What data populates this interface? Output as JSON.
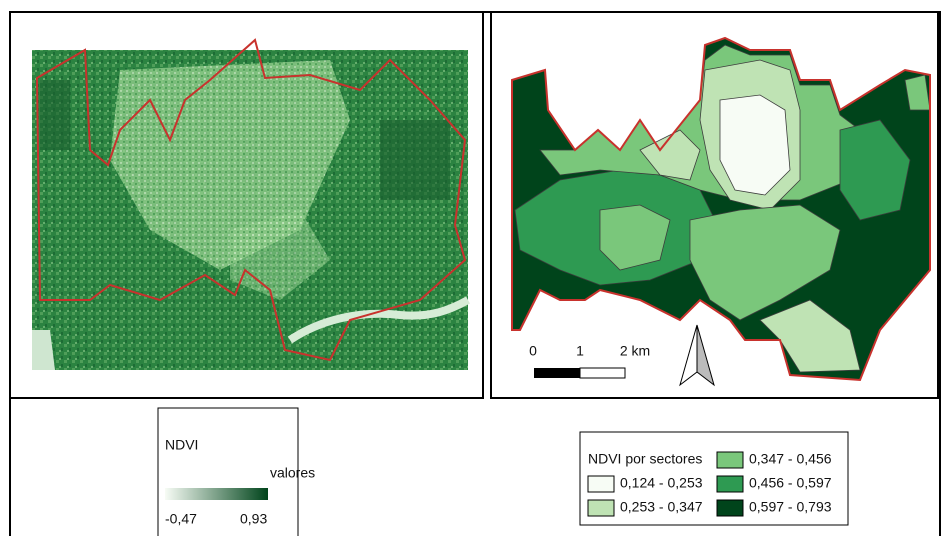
{
  "left_panel": {
    "legend": {
      "title": "NDVI",
      "subtitle": "valores",
      "min_label": "-0,47",
      "max_label": "0,93",
      "ramp_colors": [
        "#f7fcf5",
        "#00441b"
      ]
    }
  },
  "right_panel": {
    "scale_bar": {
      "labels": [
        "0",
        "1",
        "2 km"
      ]
    },
    "legend": {
      "title": "NDVI por sectores",
      "classes": [
        {
          "label": "0,124 - 0,253",
          "color": "#f7fcf5"
        },
        {
          "label": "0,253 - 0,347",
          "color": "#bfe3b4"
        },
        {
          "label": "0,347 - 0,456",
          "color": "#7ac77b"
        },
        {
          "label": "0,456 - 0,597",
          "color": "#2e9a52"
        },
        {
          "label": "0,597 - 0,793",
          "color": "#00441b"
        }
      ]
    }
  }
}
